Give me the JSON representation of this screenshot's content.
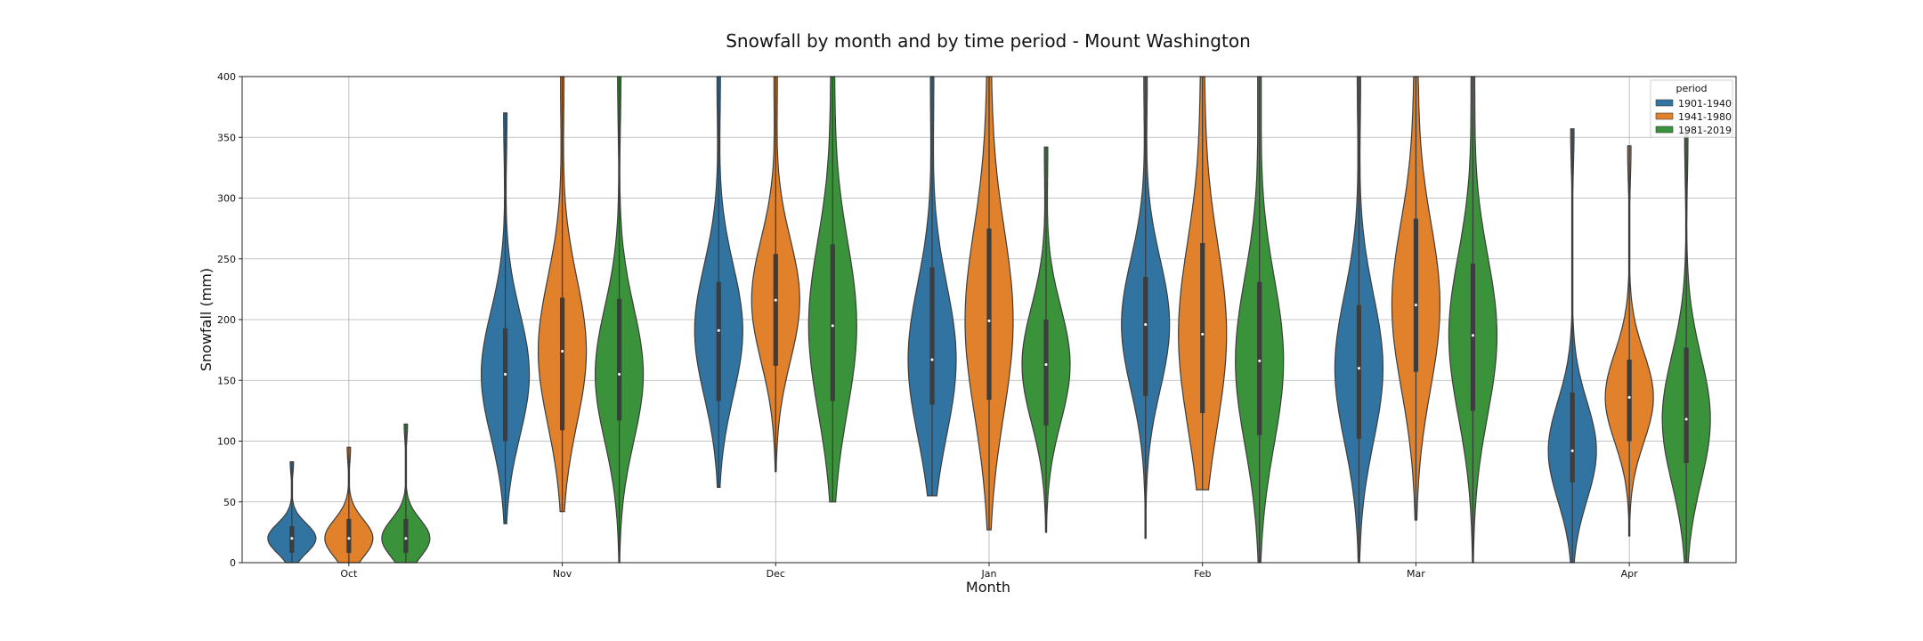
{
  "chart_data": {
    "type": "violin",
    "title": "Snowfall by month and by time period - Mount Washington",
    "xlabel": "Month",
    "ylabel": "Snowfall (mm)",
    "ylim": [
      0,
      400
    ],
    "yticks": [
      0,
      50,
      100,
      150,
      200,
      250,
      300,
      350,
      400
    ],
    "categories": [
      "Oct",
      "Nov",
      "Dec",
      "Jan",
      "Feb",
      "Mar",
      "Apr"
    ],
    "grid": true,
    "legend": {
      "title": "period",
      "placement": "top-right"
    },
    "series": [
      {
        "name": "1901-1940",
        "color": "#3274a1",
        "stats": [
          {
            "min": 0,
            "q1": 8,
            "median": 20,
            "q3": 30,
            "max": 83
          },
          {
            "min": 32,
            "q1": 100,
            "median": 155,
            "q3": 193,
            "max": 370
          },
          {
            "min": 62,
            "q1": 133,
            "median": 191,
            "q3": 231,
            "max": 400
          },
          {
            "min": 55,
            "q1": 130,
            "median": 167,
            "q3": 243,
            "max": 400
          },
          {
            "min": 20,
            "q1": 137,
            "median": 196,
            "q3": 235,
            "max": 400
          },
          {
            "min": 0,
            "q1": 102,
            "median": 160,
            "q3": 212,
            "max": 400
          },
          {
            "min": 0,
            "q1": 66,
            "median": 92,
            "q3": 140,
            "max": 357
          }
        ]
      },
      {
        "name": "1941-1980",
        "color": "#e1812c",
        "stats": [
          {
            "min": 0,
            "q1": 8,
            "median": 20,
            "q3": 36,
            "max": 95
          },
          {
            "min": 42,
            "q1": 109,
            "median": 174,
            "q3": 218,
            "max": 400
          },
          {
            "min": 75,
            "q1": 162,
            "median": 216,
            "q3": 254,
            "max": 400
          },
          {
            "min": 27,
            "q1": 134,
            "median": 199,
            "q3": 275,
            "max": 400
          },
          {
            "min": 60,
            "q1": 123,
            "median": 188,
            "q3": 263,
            "max": 400
          },
          {
            "min": 35,
            "q1": 157,
            "median": 212,
            "q3": 283,
            "max": 400
          },
          {
            "min": 22,
            "q1": 100,
            "median": 136,
            "q3": 167,
            "max": 343
          }
        ]
      },
      {
        "name": "1981-2019",
        "color": "#3a923a",
        "stats": [
          {
            "min": 0,
            "q1": 8,
            "median": 20,
            "q3": 36,
            "max": 114
          },
          {
            "min": 0,
            "q1": 117,
            "median": 155,
            "q3": 217,
            "max": 400
          },
          {
            "min": 50,
            "q1": 133,
            "median": 195,
            "q3": 262,
            "max": 400
          },
          {
            "min": 25,
            "q1": 113,
            "median": 163,
            "q3": 200,
            "max": 342
          },
          {
            "min": 0,
            "q1": 105,
            "median": 166,
            "q3": 231,
            "max": 400
          },
          {
            "min": 0,
            "q1": 125,
            "median": 187,
            "q3": 246,
            "max": 400
          },
          {
            "min": 0,
            "q1": 82,
            "median": 118,
            "q3": 177,
            "max": 355
          }
        ]
      }
    ]
  }
}
